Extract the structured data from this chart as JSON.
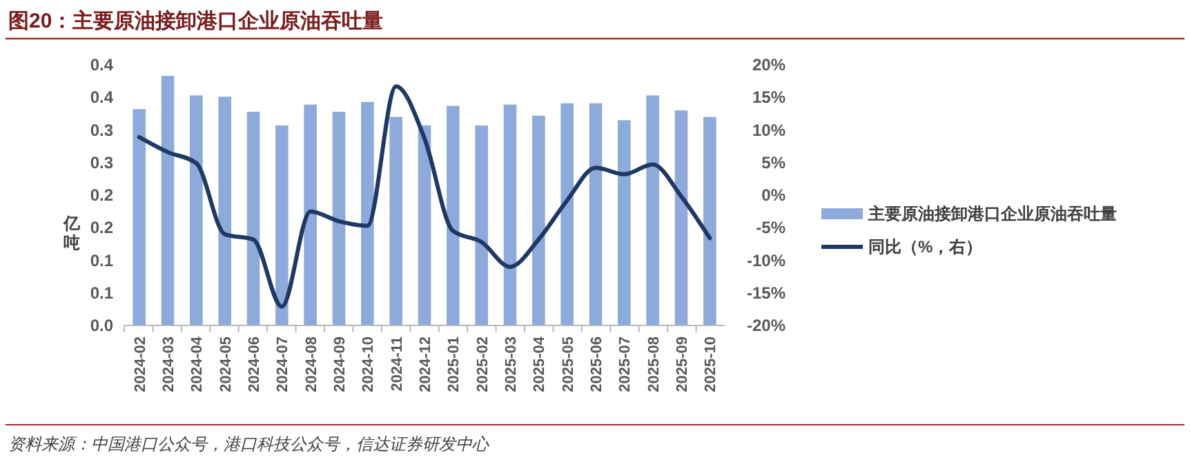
{
  "chart_data": {
    "type": "bar",
    "title": "图20：主要原油接卸港口企业原油吞吐量",
    "ylabel": "亿吨",
    "annotations": [
      "资料来源：中国港口公众号，港口科技公众号，信达证券研发中心"
    ],
    "categories": [
      "2024-02",
      "2024-03",
      "2024-04",
      "2024-05",
      "2024-06",
      "2024-07",
      "2024-08",
      "2024-09",
      "2024-10",
      "2024-11",
      "2024-12",
      "2025-01",
      "2025-02",
      "2025-03",
      "2025-04",
      "2025-05",
      "2025-06",
      "2025-07",
      "2025-08",
      "2025-09",
      "2025-10"
    ],
    "series": [
      {
        "name": "主要原油接卸港口企业原油吞吐量",
        "color": "#8eaadb",
        "values": [
          0.332,
          0.383,
          0.353,
          0.351,
          0.328,
          0.307,
          0.339,
          0.328,
          0.343,
          0.32,
          0.307,
          0.337,
          0.307,
          0.339,
          0.322,
          0.341,
          0.341,
          0.315,
          0.353,
          0.33,
          0.32
        ]
      },
      {
        "name": "同比（%，右）",
        "type": "line",
        "axis": "y2",
        "color": "#1f3864",
        "values": [
          8.9,
          6.6,
          4.9,
          -6,
          -6.8,
          -17.1,
          -2.5,
          -4,
          -4.7,
          16.7,
          8.7,
          -5.5,
          -7.2,
          -11,
          -6.8,
          -0.8,
          4.2,
          3.2,
          4.7,
          -0.2,
          -6.6
        ]
      }
    ],
    "ylim": [
      0,
      0.4
    ],
    "yticks": [
      {
        "value": 0,
        "label": "0.0"
      },
      {
        "value": 0.05,
        "label": "0.1"
      },
      {
        "value": 0.1,
        "label": "0.1"
      },
      {
        "value": 0.15,
        "label": "0.2"
      },
      {
        "value": 0.2,
        "label": "0.2"
      },
      {
        "value": 0.25,
        "label": "0.3"
      },
      {
        "value": 0.3,
        "label": "0.3"
      },
      {
        "value": 0.35,
        "label": "0.4"
      },
      {
        "value": 0.4,
        "label": "0.4"
      }
    ],
    "y2lim": [
      -20,
      20
    ],
    "y2ticks": [
      {
        "value": -20,
        "label": "-20%"
      },
      {
        "value": -15,
        "label": "-15%"
      },
      {
        "value": -10,
        "label": "-10%"
      },
      {
        "value": -5,
        "label": "-5%"
      },
      {
        "value": 0,
        "label": "0%"
      },
      {
        "value": 5,
        "label": "5%"
      },
      {
        "value": 10,
        "label": "10%"
      },
      {
        "value": 15,
        "label": "15%"
      },
      {
        "value": 20,
        "label": "20%"
      }
    ],
    "legend": "right",
    "grid": false
  }
}
